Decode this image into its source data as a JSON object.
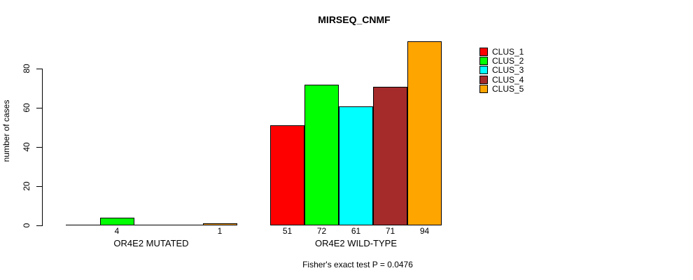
{
  "chart_data": {
    "type": "bar",
    "title": "MIRSEQ_CNMF",
    "ylabel": "number of cases",
    "xlabel": "",
    "annotation": "Fisher's exact test P = 0.0476",
    "ylim": [
      0,
      94
    ],
    "yticks": [
      0,
      20,
      40,
      60,
      80
    ],
    "grid": false,
    "legend_position": "right",
    "value_label_rule": "value printed under each bar when value > 0",
    "categories": [
      "OR4E2 MUTATED",
      "OR4E2 WILD-TYPE"
    ],
    "series": [
      {
        "name": "CLUS_1",
        "color": "#FF0000",
        "values": [
          0,
          51
        ]
      },
      {
        "name": "CLUS_2",
        "color": "#00FF00",
        "values": [
          4,
          72
        ]
      },
      {
        "name": "CLUS_3",
        "color": "#00FFFF",
        "values": [
          0,
          61
        ]
      },
      {
        "name": "CLUS_4",
        "color": "#A52A2A",
        "values": [
          0,
          71
        ]
      },
      {
        "name": "CLUS_5",
        "color": "#FFA500",
        "values": [
          1,
          94
        ]
      }
    ]
  }
}
